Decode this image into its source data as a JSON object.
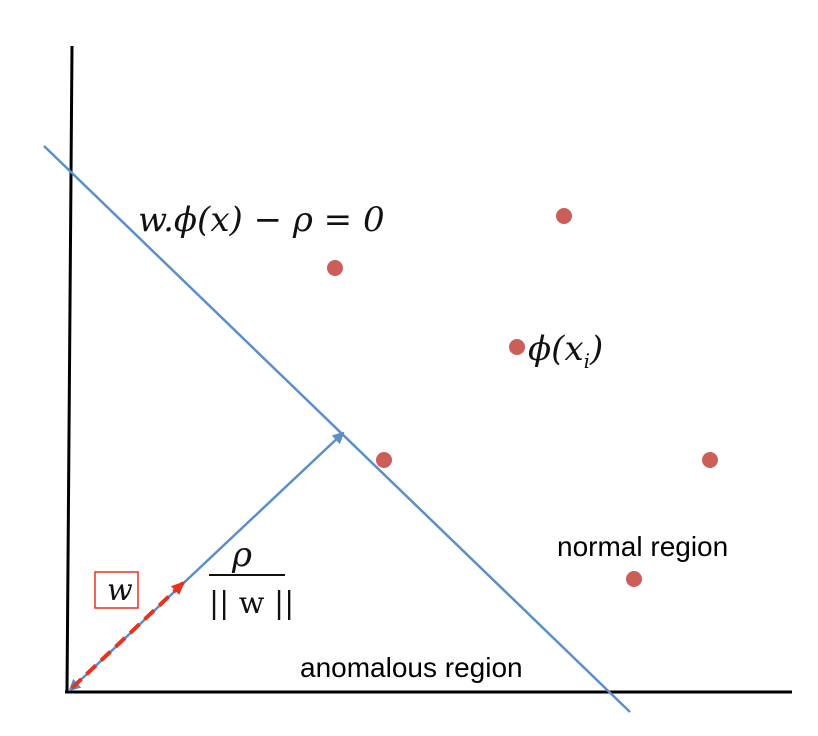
{
  "colors": {
    "axis": "#000000",
    "hyperplane": "#5b8fc9",
    "vector": "#5b8fc9",
    "w_vector": "#e8321e",
    "points": "#cc5e5a",
    "w_box": "#e8321e"
  },
  "labels": {
    "hyperplane_equation": "w.ϕ(x) − ρ = 0",
    "point_label_phi": "ϕ(x",
    "point_label_sub": "i",
    "point_label_close": ")",
    "rho": "ρ",
    "norm_w": "|| w ||",
    "w": "w",
    "normal_region": "normal region",
    "anomalous_region": "anomalous region"
  },
  "points": [
    {
      "id": "p1"
    },
    {
      "id": "p2"
    },
    {
      "id": "p3"
    },
    {
      "id": "p4"
    },
    {
      "id": "p5"
    },
    {
      "id": "p6"
    }
  ]
}
